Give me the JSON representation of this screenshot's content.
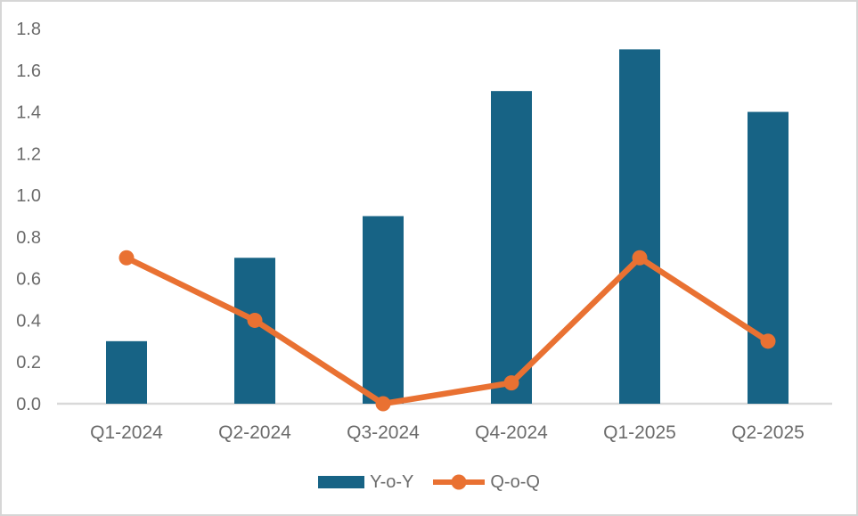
{
  "chart_data": {
    "type": "combo",
    "categories": [
      "Q1-2024",
      "Q2-2024",
      "Q3-2024",
      "Q4-2024",
      "Q1-2025",
      "Q2-2025"
    ],
    "series": [
      {
        "name": "Y-o-Y",
        "type": "bar",
        "values": [
          0.3,
          0.7,
          0.9,
          1.5,
          1.7,
          1.4
        ],
        "color": "#176385"
      },
      {
        "name": "Q-o-Q",
        "type": "line",
        "values": [
          0.7,
          0.4,
          0.0,
          0.1,
          0.7,
          0.3
        ],
        "color": "#E97132"
      }
    ],
    "title": "",
    "xlabel": "",
    "ylabel": "",
    "ylim": [
      0,
      1.8
    ],
    "ytick_step": 0.2,
    "ytick_labels": [
      "0.0",
      "0.2",
      "0.4",
      "0.6",
      "0.8",
      "1.0",
      "1.2",
      "1.4",
      "1.6",
      "1.8"
    ],
    "grid": false,
    "legend_position": "bottom-center"
  },
  "colors": {
    "axis_text": "#6B6B6B",
    "axis_line": "#D9D9D9",
    "frame_border": "#D6D6D6",
    "background": "#FFFFFF"
  }
}
